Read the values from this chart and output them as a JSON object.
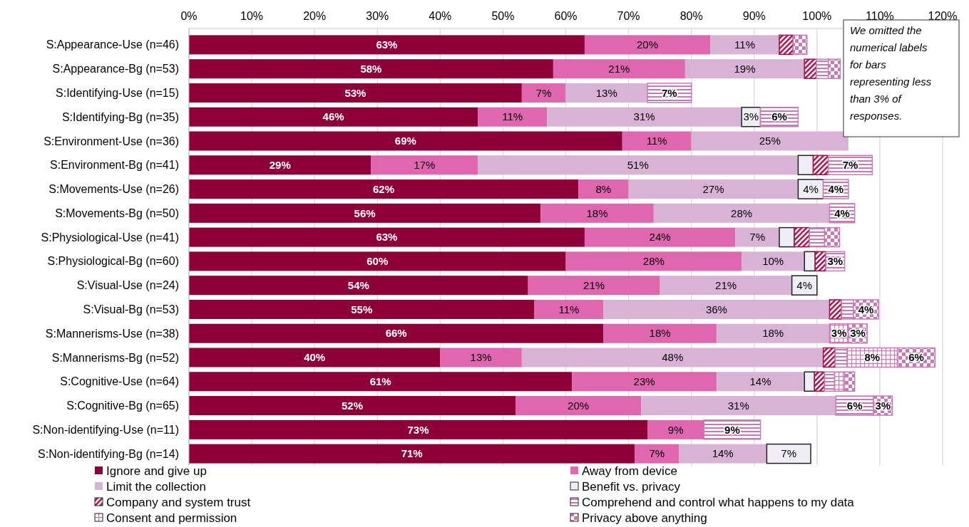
{
  "chart_data": {
    "type": "bar",
    "orientation": "horizontal",
    "stacked": true,
    "categories": [
      "S:Appearance-Use (n=46)",
      "S:Appearance-Bg (n=53)",
      "S:Identifying-Use (n=15)",
      "S:Identifying-Bg (n=35)",
      "S:Environment-Use (n=36)",
      "S:Environment-Bg (n=41)",
      "S:Movements-Use (n=26)",
      "S:Movements-Bg (n=50)",
      "S:Physiological-Use (n=41)",
      "S:Physiological-Bg (n=60)",
      "S:Visual-Use (n=24)",
      "S:Visual-Bg (n=53)",
      "S:Mannerisms-Use (n=38)",
      "S:Mannerisms-Bg (n=52)",
      "S:Cognitive-Use (n=64)",
      "S:Cognitive-Bg (n=65)",
      "S:Non-identifying-Use (n=11)",
      "S:Non-identifying-Bg (n=14)"
    ],
    "series": [
      {
        "name": "Ignore and give up",
        "color": "#8e0038",
        "values": [
          63,
          58,
          53,
          46,
          69,
          29,
          62,
          56,
          63,
          60,
          54,
          55,
          66,
          40,
          61,
          52,
          73,
          71
        ],
        "value_labels": [
          "63%",
          "58%",
          "53%",
          "46%",
          "69%",
          "29%",
          "62%",
          "56%",
          "63%",
          "60%",
          "54%",
          "55%",
          "66%",
          "40%",
          "61%",
          "52%",
          "73%",
          "71%"
        ]
      },
      {
        "name": "Away from device",
        "color": "#e066b0",
        "values": [
          20,
          21,
          7,
          11,
          11,
          17,
          8,
          18,
          24,
          28,
          21,
          11,
          18,
          13,
          23,
          20,
          9,
          7
        ],
        "value_labels": [
          "20%",
          "21%",
          "7%",
          "11%",
          "11%",
          "17%",
          "8%",
          "18%",
          "24%",
          "28%",
          "21%",
          "11%",
          "18%",
          "13%",
          "23%",
          "20%",
          "9%",
          "7%"
        ]
      },
      {
        "name": "Limit the collection",
        "color": "#d9b3d6",
        "values": [
          11,
          19,
          13,
          31,
          25,
          51,
          27,
          28,
          7,
          10,
          21,
          36,
          18,
          48,
          14,
          31,
          null,
          14
        ],
        "value_labels": [
          "11%",
          "19%",
          "13%",
          "31%",
          "25%",
          "51%",
          "27%",
          "28%",
          "7%",
          "10%",
          "21%",
          "36%",
          "18%",
          "48%",
          "14%",
          "31%",
          null,
          "14%"
        ]
      },
      {
        "name": "Benefit vs. privacy",
        "color": "#f0eef5",
        "values": [
          null,
          null,
          null,
          3,
          null,
          2.4,
          4,
          null,
          2.4,
          1.7,
          4,
          null,
          null,
          null,
          1.6,
          null,
          null,
          7
        ],
        "value_labels": [
          null,
          null,
          null,
          "3%",
          null,
          null,
          "4%",
          null,
          null,
          null,
          "4%",
          null,
          null,
          null,
          null,
          null,
          null,
          "7%"
        ]
      },
      {
        "name": "Company and system trust",
        "color": "#a0104a",
        "values": [
          2.2,
          1.9,
          null,
          null,
          null,
          2.4,
          null,
          null,
          2.4,
          1.7,
          null,
          1.9,
          null,
          1.9,
          1.6,
          null,
          null,
          null
        ],
        "value_labels": [
          null,
          null,
          null,
          null,
          null,
          null,
          null,
          null,
          null,
          null,
          null,
          null,
          null,
          null,
          null,
          null,
          null,
          null
        ]
      },
      {
        "name": "Comprehend and control what happens to my data",
        "color": "#c879b8",
        "values": [
          null,
          1.9,
          7,
          6,
          null,
          7,
          4,
          4,
          2.4,
          3,
          null,
          1.9,
          null,
          1.9,
          1.6,
          6,
          9,
          null
        ],
        "value_labels": [
          null,
          null,
          "7%",
          "6%",
          null,
          "7%",
          "4%",
          "4%",
          null,
          "3%",
          null,
          null,
          null,
          null,
          null,
          "6%",
          "9%",
          null
        ]
      },
      {
        "name": "Consent and permission",
        "color": "#c879b8",
        "values": [
          null,
          null,
          null,
          null,
          null,
          null,
          null,
          null,
          null,
          null,
          null,
          null,
          3,
          8,
          1.6,
          null,
          null,
          null
        ],
        "value_labels": [
          null,
          null,
          null,
          null,
          null,
          null,
          null,
          null,
          null,
          null,
          null,
          null,
          "3%",
          "8%",
          null,
          null,
          null,
          null
        ]
      },
      {
        "name": "Privacy above anything",
        "color": "#c879b8",
        "values": [
          2.2,
          1.9,
          null,
          null,
          null,
          null,
          null,
          null,
          2.4,
          null,
          null,
          4,
          3,
          6,
          1.6,
          3,
          null,
          null
        ],
        "value_labels": [
          null,
          null,
          null,
          null,
          null,
          null,
          null,
          null,
          null,
          null,
          null,
          "4%",
          "3%",
          "6%",
          null,
          "3%",
          null,
          null
        ]
      }
    ],
    "xlim": [
      0,
      120
    ],
    "xticks": [
      {
        "value": 0,
        "label": "0%"
      },
      {
        "value": 10,
        "label": "10%"
      },
      {
        "value": 20,
        "label": "20%"
      },
      {
        "value": 30,
        "label": "30%"
      },
      {
        "value": 40,
        "label": "40%"
      },
      {
        "value": 50,
        "label": "50%"
      },
      {
        "value": 60,
        "label": "60%"
      },
      {
        "value": 70,
        "label": "70%"
      },
      {
        "value": 80,
        "label": "80%"
      },
      {
        "value": 90,
        "label": "90%"
      },
      {
        "value": 100,
        "label": "100%"
      },
      {
        "value": 110,
        "label": "110%"
      },
      {
        "value": 120,
        "label": "120%"
      }
    ],
    "grid": "x",
    "legend": "bottom",
    "annotations": [
      "We omitted the numerical labels for bars representing less than 3% of responses."
    ]
  }
}
